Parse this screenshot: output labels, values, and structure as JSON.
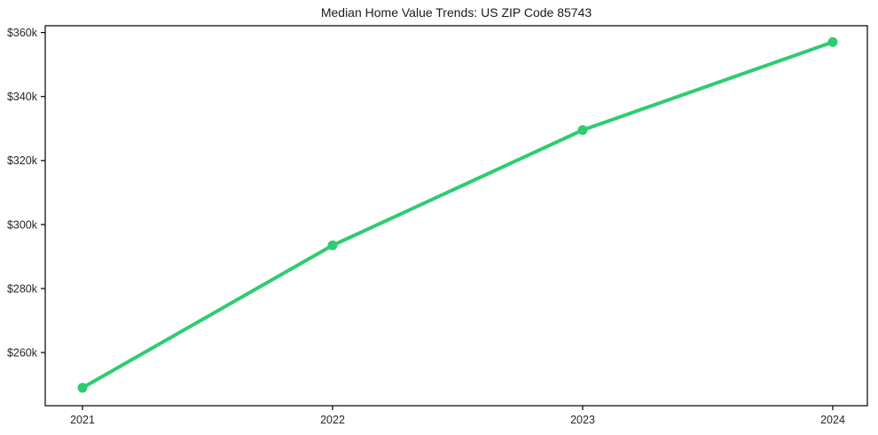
{
  "chart_data": {
    "type": "line",
    "title": "Median Home Value Trends: US ZIP Code 85743",
    "x": [
      "2021",
      "2022",
      "2023",
      "2024"
    ],
    "series": [
      {
        "name": "Median Home Value",
        "values": [
          249000,
          293500,
          329500,
          357000
        ]
      }
    ],
    "xlabel": "",
    "ylabel": "",
    "ylim": [
      243400,
      362100
    ],
    "yticks": {
      "values": [
        260000,
        280000,
        300000,
        320000,
        340000,
        360000
      ],
      "labels": [
        "$260k",
        "$280k",
        "$300k",
        "$320k",
        "$340k",
        "$360k"
      ]
    },
    "grid": false,
    "legend": "none",
    "line_color": "#2ecc71",
    "marker_color": "#2ecc71",
    "text_color": "#262626",
    "axis_color": "#000000",
    "background_color": "#ffffff"
  }
}
